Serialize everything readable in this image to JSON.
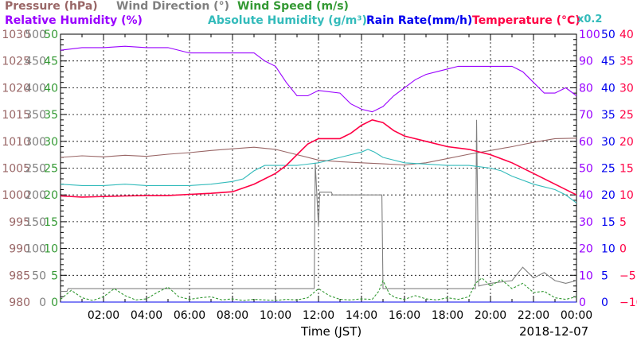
{
  "header": {
    "pressure": "Pressure (hPa)",
    "wind_direction": "Wind Direction (°)",
    "wind_speed": "Wind Speed (m/s)",
    "relative_humidity": "Relative Humidity (%)",
    "absolute_humidity": "Absolute Humidity (g/m³)",
    "rain_rate": "Rain Rate(mm/h)",
    "temperature": "Temperature (°C)",
    "abs_humidity_scale": "x0.2"
  },
  "colors": {
    "pressure": "#996666",
    "wind_direction": "#808080",
    "wind_speed": "#339933",
    "relative_humidity": "#9900ff",
    "absolute_humidity": "#33bbbb",
    "rain_rate": "#0000ee",
    "temperature": "#ff0044"
  },
  "chart_data": {
    "type": "line",
    "xlabel": "Time (JST)",
    "date": "2018-12-07",
    "x_range_hours": [
      0,
      24
    ],
    "x_ticks": [
      "02:00",
      "04:00",
      "06:00",
      "08:00",
      "10:00",
      "12:00",
      "14:00",
      "16:00",
      "18:00",
      "20:00",
      "22:00",
      "00:00"
    ],
    "grid": true,
    "axes": {
      "pressure": {
        "range": [
          980,
          1030
        ],
        "ticks": [
          "980",
          "985",
          "990",
          "995",
          "1000",
          "1005",
          "1010",
          "1015",
          "1020",
          "1025",
          "1030"
        ]
      },
      "wind_direction": {
        "range": [
          0,
          500
        ],
        "ticks": [
          "0",
          "50",
          "100",
          "150",
          "200",
          "250",
          "300",
          "350",
          "400",
          "450",
          "500"
        ]
      },
      "wind_speed": {
        "range": [
          0,
          50
        ],
        "ticks": [
          "0",
          "5",
          "10",
          "15",
          "20",
          "25",
          "30",
          "35",
          "40",
          "45",
          "50"
        ]
      },
      "relative_humidity": {
        "range": [
          0,
          100
        ],
        "ticks": [
          "0",
          "10",
          "20",
          "30",
          "40",
          "50",
          "60",
          "70",
          "80",
          "90",
          "100"
        ]
      },
      "rain_rate": {
        "range": [
          0,
          50
        ],
        "ticks": [
          "0",
          "5",
          "10",
          "15",
          "20",
          "25",
          "30",
          "35",
          "40",
          "45",
          "50"
        ]
      },
      "temperature": {
        "range": [
          -10,
          40
        ],
        "ticks": [
          "−10",
          "−5",
          "0",
          "5",
          "10",
          "15",
          "20",
          "25",
          "30",
          "35",
          "40"
        ]
      }
    },
    "series": [
      {
        "name": "Pressure (hPa)",
        "axis": "pressure",
        "points": [
          [
            0,
            1007.0
          ],
          [
            1,
            1007.3
          ],
          [
            2,
            1007.1
          ],
          [
            3,
            1007.4
          ],
          [
            4,
            1007.2
          ],
          [
            5,
            1007.6
          ],
          [
            6,
            1007.9
          ],
          [
            7,
            1008.3
          ],
          [
            8,
            1008.6
          ],
          [
            9,
            1008.9
          ],
          [
            10,
            1008.5
          ],
          [
            11,
            1007.5
          ],
          [
            12,
            1006.5
          ],
          [
            13,
            1006.2
          ],
          [
            14,
            1006.0
          ],
          [
            15,
            1005.8
          ],
          [
            16,
            1005.6
          ],
          [
            17,
            1006.0
          ],
          [
            18,
            1006.8
          ],
          [
            19,
            1007.6
          ],
          [
            20,
            1008.3
          ],
          [
            21,
            1009.0
          ],
          [
            22,
            1009.8
          ],
          [
            23,
            1010.5
          ],
          [
            24,
            1010.6
          ]
        ]
      },
      {
        "name": "Wind Direction (°)",
        "axis": "wind_direction",
        "points": [
          [
            0,
            20
          ],
          [
            0.3,
            20
          ],
          [
            0.35,
            25
          ],
          [
            11.8,
            25
          ],
          [
            11.85,
            260
          ],
          [
            12.0,
            140
          ],
          [
            12.05,
            205
          ],
          [
            12.6,
            205
          ],
          [
            12.65,
            200
          ],
          [
            14.95,
            200
          ],
          [
            15.0,
            25
          ],
          [
            19.3,
            25
          ],
          [
            19.35,
            340
          ],
          [
            19.45,
            30
          ],
          [
            20.0,
            35
          ],
          [
            21.0,
            40
          ],
          [
            21.5,
            65
          ],
          [
            22.0,
            45
          ],
          [
            22.5,
            55
          ],
          [
            23.0,
            40
          ],
          [
            23.5,
            35
          ],
          [
            24.0,
            40
          ]
        ]
      },
      {
        "name": "Wind Speed (m/s)",
        "axis": "wind_speed",
        "points": [
          [
            0,
            0.5
          ],
          [
            0.5,
            2.2
          ],
          [
            1,
            0.8
          ],
          [
            1.5,
            0.3
          ],
          [
            2,
            1.0
          ],
          [
            2.5,
            2.5
          ],
          [
            3,
            1.2
          ],
          [
            3.5,
            0.4
          ],
          [
            4,
            0.6
          ],
          [
            4.5,
            1.8
          ],
          [
            5,
            2.8
          ],
          [
            5.5,
            1.0
          ],
          [
            6,
            0.5
          ],
          [
            6.5,
            0.8
          ],
          [
            7,
            1.0
          ],
          [
            7.5,
            0.4
          ],
          [
            8,
            0.6
          ],
          [
            8.5,
            0.3
          ],
          [
            9,
            0.5
          ],
          [
            9.5,
            0.4
          ],
          [
            10,
            0.3
          ],
          [
            10.5,
            0.5
          ],
          [
            11,
            0.4
          ],
          [
            11.5,
            0.8
          ],
          [
            12,
            2.5
          ],
          [
            12.5,
            1.2
          ],
          [
            13,
            0.5
          ],
          [
            13.5,
            0.4
          ],
          [
            14,
            0.6
          ],
          [
            14.5,
            0.5
          ],
          [
            14.8,
            2.0
          ],
          [
            15,
            4.0
          ],
          [
            15.3,
            1.5
          ],
          [
            15.6,
            0.8
          ],
          [
            16,
            0.5
          ],
          [
            16.5,
            1.2
          ],
          [
            17,
            0.6
          ],
          [
            17.5,
            0.4
          ],
          [
            18,
            0.8
          ],
          [
            18.5,
            0.5
          ],
          [
            19,
            1.0
          ],
          [
            19.3,
            3.5
          ],
          [
            19.6,
            4.5
          ],
          [
            20,
            3.0
          ],
          [
            20.5,
            4.2
          ],
          [
            21,
            2.5
          ],
          [
            21.5,
            3.5
          ],
          [
            22,
            1.8
          ],
          [
            22.5,
            2.0
          ],
          [
            23,
            0.8
          ],
          [
            23.5,
            0.5
          ],
          [
            24,
            1.0
          ]
        ]
      },
      {
        "name": "Relative Humidity (%)",
        "axis": "relative_humidity",
        "points": [
          [
            0,
            94
          ],
          [
            1,
            95
          ],
          [
            2,
            95
          ],
          [
            3,
            95.5
          ],
          [
            4,
            95
          ],
          [
            5,
            95
          ],
          [
            6,
            93
          ],
          [
            7,
            93
          ],
          [
            8,
            93
          ],
          [
            9,
            93
          ],
          [
            9.5,
            90
          ],
          [
            10,
            88
          ],
          [
            10.5,
            82
          ],
          [
            11,
            77
          ],
          [
            11.5,
            77
          ],
          [
            12,
            79
          ],
          [
            13,
            78
          ],
          [
            13.5,
            74
          ],
          [
            14,
            72
          ],
          [
            14.5,
            71
          ],
          [
            15,
            73
          ],
          [
            15.5,
            77
          ],
          [
            16,
            80
          ],
          [
            16.5,
            83
          ],
          [
            17,
            85
          ],
          [
            17.5,
            86
          ],
          [
            18,
            87
          ],
          [
            18.5,
            88
          ],
          [
            19,
            88
          ],
          [
            20,
            88
          ],
          [
            21,
            88
          ],
          [
            21.5,
            86
          ],
          [
            22,
            82
          ],
          [
            22.5,
            78
          ],
          [
            23,
            78
          ],
          [
            23.5,
            80
          ],
          [
            24,
            77
          ]
        ]
      },
      {
        "name": "Absolute Humidity (g/m³) x0.2",
        "axis": "relative_humidity",
        "points": [
          [
            0,
            44
          ],
          [
            1,
            43.5
          ],
          [
            2,
            43.5
          ],
          [
            3,
            44
          ],
          [
            4,
            43.5
          ],
          [
            5,
            43.5
          ],
          [
            6,
            43.5
          ],
          [
            7,
            44
          ],
          [
            8,
            45
          ],
          [
            8.5,
            46
          ],
          [
            9,
            49
          ],
          [
            9.5,
            51
          ],
          [
            10,
            51
          ],
          [
            10.5,
            51
          ],
          [
            11,
            51
          ],
          [
            12,
            52
          ],
          [
            12.5,
            53
          ],
          [
            13,
            54
          ],
          [
            13.5,
            55
          ],
          [
            14,
            56
          ],
          [
            14.3,
            57
          ],
          [
            14.6,
            56
          ],
          [
            15,
            54
          ],
          [
            15.5,
            53
          ],
          [
            16,
            52
          ],
          [
            17,
            51.5
          ],
          [
            18,
            51
          ],
          [
            19,
            51
          ],
          [
            20,
            50
          ],
          [
            20.5,
            49
          ],
          [
            21,
            47
          ],
          [
            22,
            44
          ],
          [
            23,
            42
          ],
          [
            23.5,
            40
          ],
          [
            24,
            37
          ]
        ]
      },
      {
        "name": "Rain Rate(mm/h)",
        "axis": "rain_rate",
        "points": [
          [
            0,
            0
          ],
          [
            24,
            0
          ]
        ]
      },
      {
        "name": "Temperature (°C)",
        "axis": "temperature",
        "points": [
          [
            0,
            9.8
          ],
          [
            1,
            9.6
          ],
          [
            2,
            9.7
          ],
          [
            3,
            9.8
          ],
          [
            4,
            9.9
          ],
          [
            5,
            9.9
          ],
          [
            6,
            10.1
          ],
          [
            7,
            10.3
          ],
          [
            8,
            10.6
          ],
          [
            9,
            12.0
          ],
          [
            10,
            14.0
          ],
          [
            10.5,
            15.5
          ],
          [
            11,
            17.5
          ],
          [
            11.5,
            19.5
          ],
          [
            12,
            20.5
          ],
          [
            12.5,
            20.5
          ],
          [
            13,
            20.5
          ],
          [
            13.5,
            21.5
          ],
          [
            14,
            23.0
          ],
          [
            14.5,
            24.0
          ],
          [
            15,
            23.5
          ],
          [
            15.5,
            22.0
          ],
          [
            16,
            21.0
          ],
          [
            17,
            20.0
          ],
          [
            18,
            19.0
          ],
          [
            19,
            18.5
          ],
          [
            20,
            17.5
          ],
          [
            21,
            16.0
          ],
          [
            22,
            14.0
          ],
          [
            23,
            12.0
          ],
          [
            24,
            10.0
          ]
        ]
      }
    ]
  }
}
